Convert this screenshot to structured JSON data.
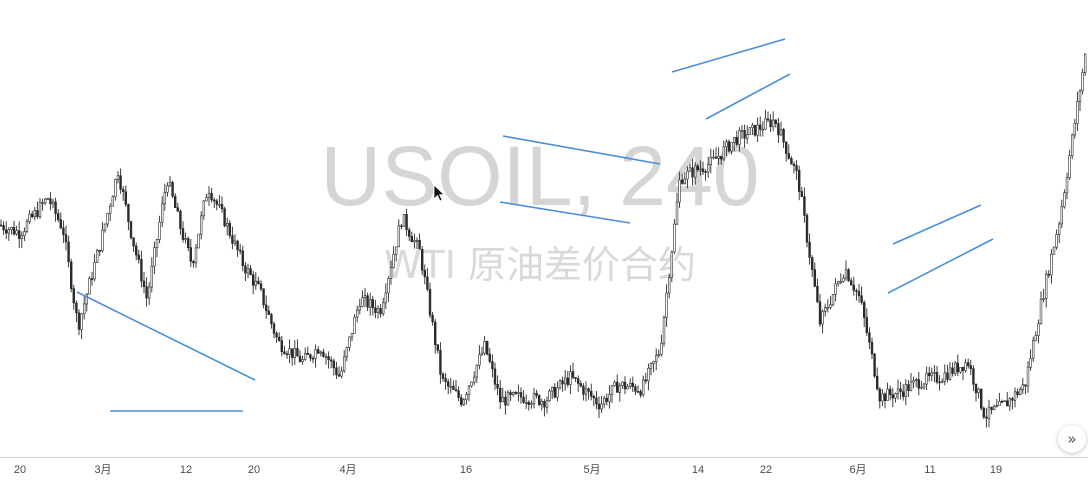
{
  "watermark": {
    "symbol": "USOIL, 240",
    "description": "WTI 原油差价合约"
  },
  "controls": {
    "scroll_to_latest_icon": "double-chevron-right-icon",
    "scroll_to_latest_glyph": "»"
  },
  "colors": {
    "candle": "#2a2a2a",
    "trendline": "#4a8fd8",
    "axis_text": "#4a4a4a",
    "watermark": "#d5d5d5"
  },
  "chart_data": {
    "type": "candlestick",
    "x_ticks": [
      "20",
      "3月",
      "12",
      "20",
      "4月",
      "16",
      "5月",
      "14",
      "22",
      "6月",
      "11",
      "19"
    ],
    "grid": false,
    "price_path": [
      [
        0,
        0.5
      ],
      [
        20,
        0.48
      ],
      [
        48,
        0.57
      ],
      [
        63,
        0.49
      ],
      [
        78,
        0.24
      ],
      [
        100,
        0.45
      ],
      [
        118,
        0.64
      ],
      [
        132,
        0.47
      ],
      [
        147,
        0.31
      ],
      [
        167,
        0.62
      ],
      [
        182,
        0.48
      ],
      [
        192,
        0.4
      ],
      [
        208,
        0.6
      ],
      [
        225,
        0.51
      ],
      [
        243,
        0.4
      ],
      [
        260,
        0.33
      ],
      [
        278,
        0.2
      ],
      [
        303,
        0.15
      ],
      [
        320,
        0.19
      ],
      [
        340,
        0.11
      ],
      [
        360,
        0.31
      ],
      [
        380,
        0.28
      ],
      [
        402,
        0.52
      ],
      [
        420,
        0.43
      ],
      [
        442,
        0.1
      ],
      [
        462,
        0.05
      ],
      [
        485,
        0.19
      ],
      [
        500,
        0.05
      ],
      [
        522,
        0.06
      ],
      [
        545,
        0.05
      ],
      [
        570,
        0.11
      ],
      [
        600,
        0.04
      ],
      [
        618,
        0.09
      ],
      [
        642,
        0.08
      ],
      [
        660,
        0.18
      ],
      [
        680,
        0.62
      ],
      [
        695,
        0.64
      ],
      [
        712,
        0.66
      ],
      [
        735,
        0.72
      ],
      [
        752,
        0.74
      ],
      [
        775,
        0.77
      ],
      [
        798,
        0.62
      ],
      [
        820,
        0.25
      ],
      [
        845,
        0.39
      ],
      [
        860,
        0.31
      ],
      [
        880,
        0.06
      ],
      [
        898,
        0.07
      ],
      [
        920,
        0.1
      ],
      [
        940,
        0.11
      ],
      [
        968,
        0.15
      ],
      [
        985,
        0.01
      ],
      [
        1005,
        0.04
      ],
      [
        1025,
        0.09
      ],
      [
        1042,
        0.31
      ],
      [
        1060,
        0.52
      ],
      [
        1088,
        0.98
      ]
    ]
  }
}
